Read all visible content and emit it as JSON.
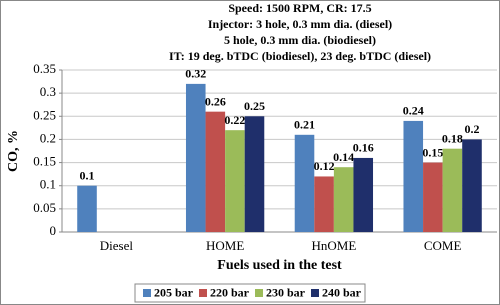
{
  "chart_data": {
    "type": "bar",
    "title_lines": [
      "Speed: 1500 RPM, CR: 17.5",
      "Injector: 3 hole, 0.3 mm dia. (diesel)",
      "5 hole, 0.3 mm dia. (biodiesel)",
      "IT: 19 deg. bTDC (biodiesel), 23 deg. bTDC (diesel)"
    ],
    "x_label": "Fuels used in the test",
    "y_label": "CO, %",
    "categories": [
      "Diesel",
      "HOME",
      "HnOME",
      "COME"
    ],
    "series": [
      {
        "name": "205 bar",
        "color": "#4f81bd",
        "values": [
          0.1,
          0.32,
          0.21,
          0.24
        ]
      },
      {
        "name": "220 bar",
        "color": "#c0504d",
        "values": [
          null,
          0.26,
          0.12,
          0.15
        ]
      },
      {
        "name": "230 bar",
        "color": "#9bbb59",
        "values": [
          null,
          0.22,
          0.14,
          0.18
        ]
      },
      {
        "name": "240 bar",
        "color": "#1f2f6b",
        "values": [
          null,
          0.25,
          0.16,
          0.2
        ]
      }
    ],
    "ylim": [
      0,
      0.35
    ],
    "yticks": [
      0,
      0.05,
      0.1,
      0.15,
      0.2,
      0.25,
      0.3,
      0.35
    ],
    "grid": true,
    "legend": "bottom"
  }
}
